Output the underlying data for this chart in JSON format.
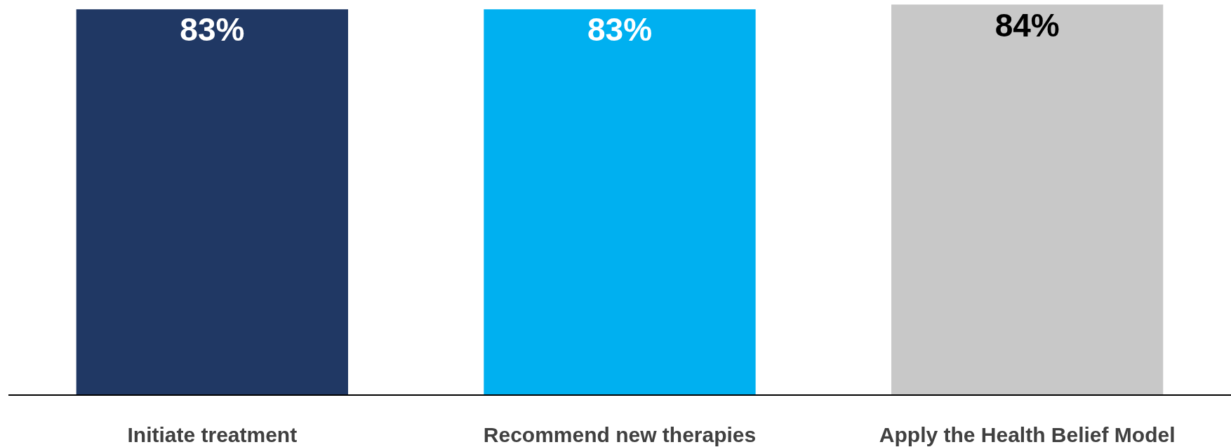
{
  "chart_data": {
    "type": "bar",
    "categories": [
      "Initiate treatment",
      "Recommend new therapies",
      "Apply the Health Belief Model"
    ],
    "values": [
      83,
      83,
      84
    ],
    "colors": [
      "#203864",
      "#00b0f0",
      "#c8c8c8"
    ],
    "ylim": [
      0,
      85
    ],
    "value_labels": [
      "83%",
      "83%",
      "84%"
    ],
    "tick_labels": "x"
  }
}
